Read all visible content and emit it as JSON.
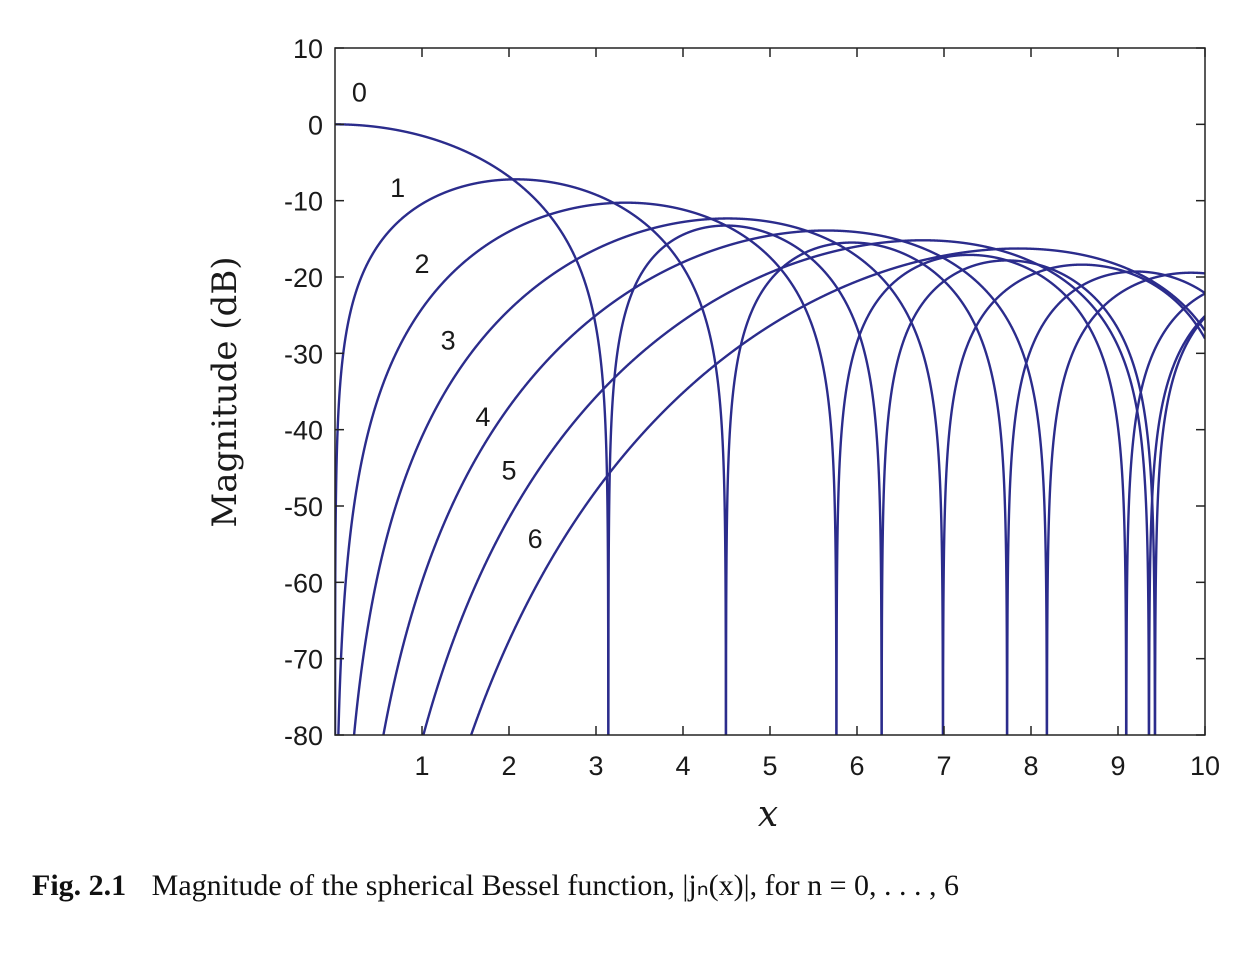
{
  "chart_data": {
    "type": "line",
    "function": "spherical Bessel |j_n(x)| in dB",
    "orders": [
      0,
      1,
      2,
      3,
      4,
      5,
      6
    ],
    "curve_labels": [
      "0",
      "1",
      "2",
      "3",
      "4",
      "5",
      "6"
    ],
    "xlim": [
      0,
      10
    ],
    "ylim": [
      -80,
      10
    ],
    "x_ticks": [
      1,
      2,
      3,
      4,
      5,
      6,
      7,
      8,
      9,
      10
    ],
    "y_ticks": [
      10,
      0,
      -10,
      -20,
      -30,
      -40,
      -50,
      -60,
      -70,
      -80
    ],
    "xlabel": "x",
    "ylabel": "Magnitude (dB)",
    "grid": false,
    "series_color": "#2b2c8c",
    "peaks_dB": [
      {
        "n": 0,
        "x": 0.0,
        "y": 0.0
      },
      {
        "n": 1,
        "x": 2.08,
        "y": -7.3
      },
      {
        "n": 2,
        "x": 3.34,
        "y": -10.3
      },
      {
        "n": 3,
        "x": 4.51,
        "y": -12.5
      },
      {
        "n": 4,
        "x": 5.65,
        "y": -14.1
      },
      {
        "n": 5,
        "x": 6.76,
        "y": -15.4
      },
      {
        "n": 6,
        "x": 7.85,
        "y": -16.4
      }
    ],
    "zeros_x": [
      {
        "n": 0,
        "x": [
          3.1416,
          6.2832,
          9.4248
        ]
      },
      {
        "n": 1,
        "x": [
          4.4934,
          7.7253
        ]
      },
      {
        "n": 2,
        "x": [
          5.7635,
          9.095
        ]
      },
      {
        "n": 3,
        "x": [
          6.9879
        ]
      },
      {
        "n": 4,
        "x": [
          8.1826
        ]
      },
      {
        "n": 5,
        "x": [
          9.3558
        ]
      }
    ]
  },
  "caption": {
    "figure_number": "Fig. 2.1",
    "text": "Magnitude of the spherical Bessel function, |jₙ(x)|, for n = 0, . . . , 6"
  }
}
